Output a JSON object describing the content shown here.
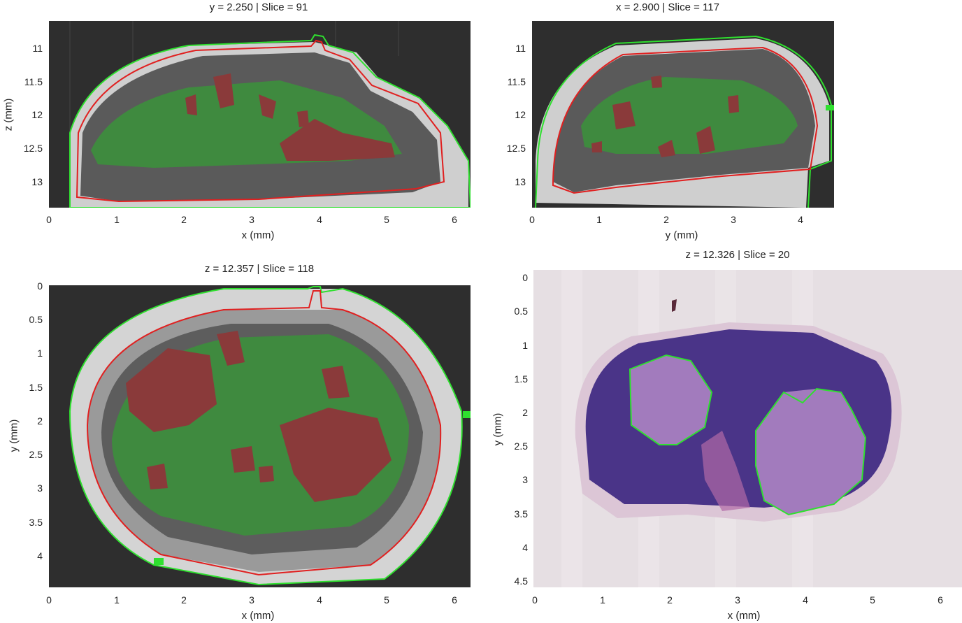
{
  "panels": [
    {
      "title": "y = 2.250 | Slice = 91",
      "xlabel": "x (mm)",
      "ylabel": "z (mm)",
      "xticks": [
        "0",
        "1",
        "2",
        "3",
        "4",
        "5",
        "6"
      ],
      "yticks": [
        "11",
        "11.5",
        "12",
        "12.5",
        "13"
      ]
    },
    {
      "title": "x = 2.900 | Slice = 117",
      "xlabel": "y (mm)",
      "ylabel": "",
      "xticks": [
        "0",
        "1",
        "2",
        "3",
        "4"
      ],
      "yticks": [
        "11",
        "11.5",
        "12",
        "12.5",
        "13"
      ]
    },
    {
      "title": "z = 12.357 | Slice = 118",
      "xlabel": "x (mm)",
      "ylabel": "y (mm)",
      "xticks": [
        "0",
        "1",
        "2",
        "3",
        "4",
        "5",
        "6"
      ],
      "yticks": [
        "0",
        "0.5",
        "1",
        "1.5",
        "2",
        "2.5",
        "3",
        "3.5",
        "4"
      ]
    },
    {
      "title": "z = 12.326 | Slice = 20",
      "xlabel": "x (mm)",
      "ylabel": "y (mm)",
      "xticks": [
        "0",
        "1",
        "2",
        "3",
        "4",
        "5",
        "6"
      ],
      "yticks": [
        "0",
        "0.5",
        "1",
        "1.5",
        "2",
        "2.5",
        "3",
        "3.5",
        "4",
        "4.5"
      ]
    }
  ],
  "colors": {
    "background_scan": "#3a3a3a",
    "tissue_ring": "#d8d8d8",
    "green_overlay": "#3f8a3f",
    "red_overlay": "#8a3a3a",
    "contour_green": "#2fe02f",
    "contour_red": "#e02020",
    "histology_bg": "#e6dfe3",
    "histology_tissue": "#4a3488",
    "histology_tumor": "#a27bbd"
  }
}
